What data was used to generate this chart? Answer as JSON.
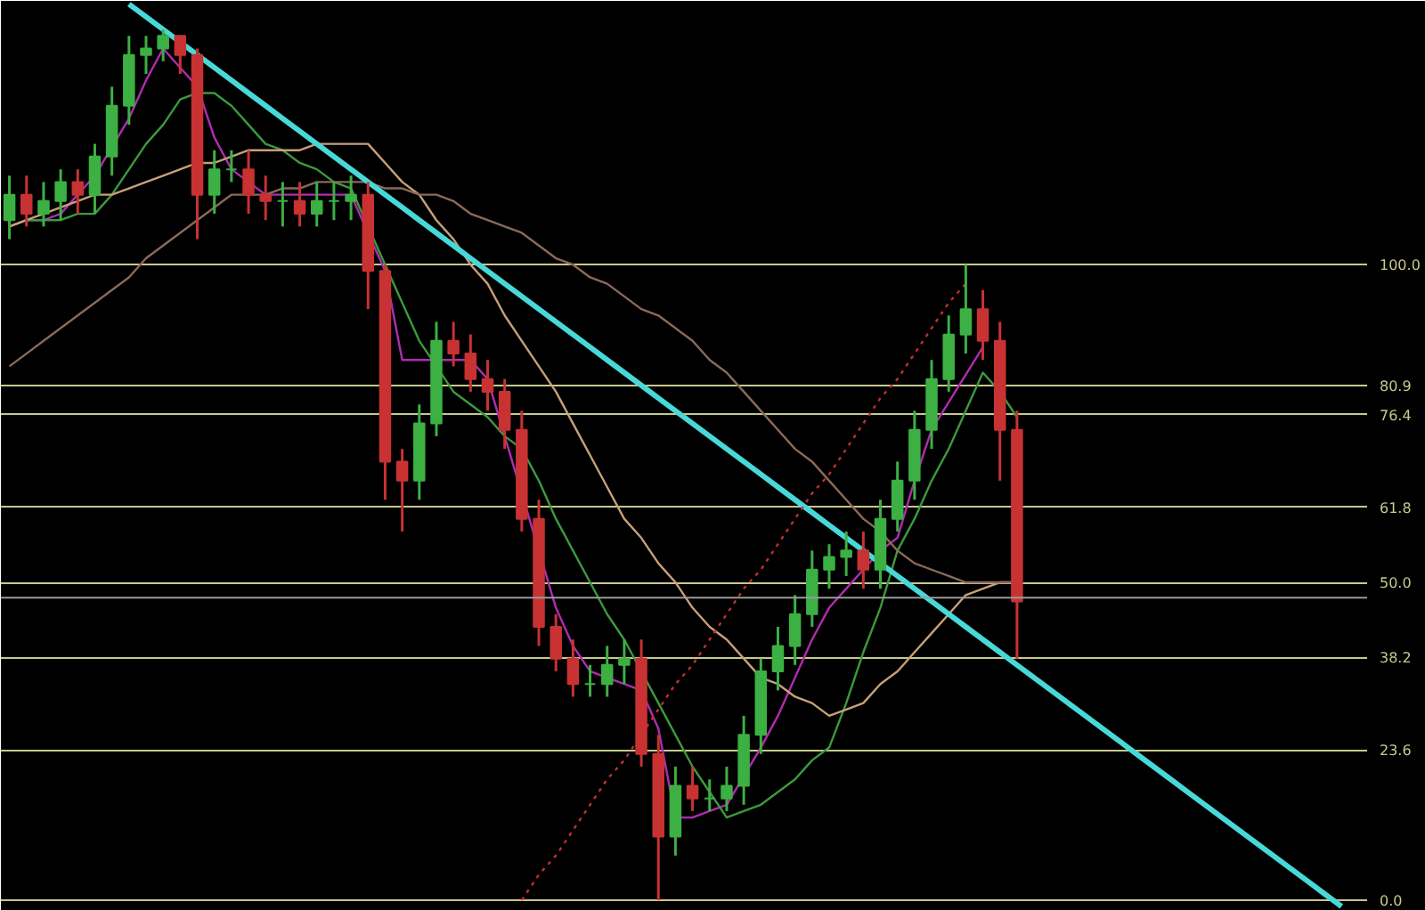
{
  "chart_data": {
    "type": "candlestick",
    "tick_labels": "y",
    "grid": "y",
    "categories": [
      null,
      null,
      null,
      null,
      null,
      null,
      null,
      null,
      null,
      null,
      null,
      null,
      null,
      null,
      null,
      null,
      null,
      null,
      null,
      null,
      null,
      null,
      null,
      null,
      null,
      null,
      null,
      null,
      null,
      null,
      null,
      null,
      null,
      null,
      null,
      null,
      null,
      null,
      null,
      null,
      null,
      null,
      null,
      null,
      null,
      null,
      null,
      null,
      null,
      null,
      null,
      null,
      null,
      null,
      null,
      null,
      null,
      null,
      null,
      null,
      null,
      null,
      null,
      null,
      null,
      null,
      null,
      null,
      null,
      null,
      null,
      null,
      null,
      null,
      null,
      null,
      null,
      null,
      null
    ],
    "ylim": [
      -1.7,
      141.5
    ],
    "yticks": [
      {
        "value": 0,
        "label": "0.0"
      },
      23.6,
      38.2,
      {
        "value": 50,
        "label": "50.0"
      },
      61.8,
      76.4,
      80.9,
      {
        "value": 100,
        "label": "100.0"
      }
    ],
    "ohlc": [
      [
        107,
        114,
        104,
        111
      ],
      [
        111,
        114,
        106,
        108
      ],
      [
        108,
        113,
        106,
        110
      ],
      [
        110,
        115,
        107,
        113
      ],
      [
        113,
        115,
        108,
        111
      ],
      [
        111,
        119,
        108,
        117
      ],
      [
        117,
        128,
        114,
        125
      ],
      [
        125,
        136,
        122,
        133
      ],
      [
        133,
        136,
        130,
        134
      ],
      [
        134,
        137,
        132,
        136
      ],
      [
        136,
        136,
        130,
        133
      ],
      [
        133,
        134,
        104,
        111
      ],
      [
        111,
        118,
        108,
        115
      ],
      [
        115,
        118,
        113,
        115
      ],
      [
        115,
        118,
        108,
        111
      ],
      [
        111,
        114,
        107,
        110
      ],
      [
        110,
        113,
        106,
        110
      ],
      [
        110,
        113,
        106,
        108
      ],
      [
        108,
        113,
        106,
        110
      ],
      [
        110,
        113,
        107,
        110
      ],
      [
        110,
        114,
        107,
        111
      ],
      [
        111,
        113,
        93,
        99
      ],
      [
        99,
        100,
        63,
        69
      ],
      [
        69,
        71,
        58,
        66
      ],
      [
        66,
        78,
        63,
        75
      ],
      [
        75,
        91,
        73,
        88
      ],
      [
        88,
        91,
        84,
        86
      ],
      [
        86,
        89,
        80,
        82
      ],
      [
        82,
        85,
        77,
        80
      ],
      [
        80,
        82,
        71,
        74
      ],
      [
        74,
        77,
        58,
        60
      ],
      [
        60,
        63,
        40,
        43
      ],
      [
        43,
        45,
        36,
        38
      ],
      [
        38,
        41,
        32,
        34
      ],
      [
        34,
        37,
        32,
        34
      ],
      [
        34,
        40,
        32,
        37
      ],
      [
        37,
        41,
        34,
        38
      ],
      [
        38,
        41,
        21,
        23
      ],
      [
        23,
        26,
        0,
        10
      ],
      [
        10,
        21,
        7,
        18
      ],
      [
        18,
        21,
        14,
        16
      ],
      [
        16,
        19,
        14,
        16
      ],
      [
        16,
        21,
        14,
        18
      ],
      [
        18,
        29,
        15,
        26
      ],
      [
        26,
        38,
        23,
        36
      ],
      [
        36,
        43,
        33,
        40
      ],
      [
        40,
        48,
        37,
        45
      ],
      [
        45,
        55,
        43,
        52
      ],
      [
        52,
        56,
        49,
        54
      ],
      [
        54,
        58,
        51,
        55
      ],
      [
        55,
        58,
        49,
        52
      ],
      [
        52,
        63,
        49,
        60
      ],
      [
        60,
        69,
        58,
        66
      ],
      [
        66,
        77,
        63,
        74
      ],
      [
        74,
        85,
        71,
        82
      ],
      [
        82,
        92,
        80,
        89
      ],
      [
        89,
        100,
        86,
        93
      ],
      [
        93,
        96,
        85,
        88
      ],
      [
        88,
        91,
        66,
        74
      ],
      [
        74,
        77,
        38,
        47
      ],
      null,
      null,
      null,
      null,
      null,
      null,
      null,
      null,
      null,
      null,
      null,
      null,
      null,
      null,
      null,
      null,
      null,
      null,
      null
    ],
    "colors": [
      "#3cb043",
      "#c83232",
      "#3cb043",
      "#3cb043",
      "#c83232",
      "#3cb043",
      "#3cb043",
      "#3cb043",
      "#3cb043",
      "#3cb043",
      "#c83232",
      "#c83232",
      "#3cb043",
      "#3cb043",
      "#c83232",
      "#c83232",
      "#3cb043",
      "#c83232",
      "#3cb043",
      "#3cb043",
      "#3cb043",
      "#c83232",
      "#c83232",
      "#c83232",
      "#3cb043",
      "#3cb043",
      "#c83232",
      "#c83232",
      "#c83232",
      "#c83232",
      "#c83232",
      "#c83232",
      "#c83232",
      "#c83232",
      "#3cb043",
      "#3cb043",
      "#3cb043",
      "#c83232",
      "#c83232",
      "#3cb043",
      "#c83232",
      "#3cb043",
      "#3cb043",
      "#3cb043",
      "#3cb043",
      "#3cb043",
      "#3cb043",
      "#3cb043",
      "#3cb043",
      "#3cb043",
      "#c83232",
      "#3cb043",
      "#3cb043",
      "#3cb043",
      "#3cb043",
      "#3cb043",
      "#3cb043",
      "#c83232",
      "#c83232",
      "#c83232",
      null,
      null,
      null,
      null,
      null,
      null,
      null,
      null,
      null,
      null,
      null,
      null,
      null,
      null,
      null,
      null,
      null,
      null,
      null
    ],
    "series": [
      {
        "type": "line",
        "color": "#b02cb0",
        "values": [
          106,
          107,
          107,
          108,
          111,
          114,
          null,
          123,
          129,
          134,
          131,
          128,
          120,
          115,
          113,
          111,
          111,
          111,
          111,
          111,
          111,
          null,
          99,
          85,
          null,
          null,
          85,
          85,
          82,
          null,
          null,
          null,
          46,
          40,
          36,
          35,
          34,
          33,
          27,
          13,
          13,
          14,
          15,
          null,
          24,
          29,
          35,
          41,
          46,
          49,
          52,
          55,
          57,
          66,
          74,
          null,
          null,
          87,
          null,
          null,
          null,
          null,
          null,
          null,
          null,
          null,
          null,
          null,
          null,
          null,
          null,
          null,
          null,
          null,
          null,
          null,
          null,
          null,
          null
        ]
      },
      {
        "type": "line",
        "color": "#3c9a3c",
        "values": [
          106,
          107,
          107,
          107,
          108,
          108,
          111,
          115,
          119,
          122,
          126,
          127,
          127,
          125,
          122,
          119,
          118,
          116,
          115,
          113,
          112,
          null,
          100,
          94,
          88,
          84,
          80,
          78,
          76,
          73,
          71,
          66,
          60,
          55,
          50,
          45,
          41,
          null,
          31,
          26,
          21,
          17,
          13,
          14,
          15,
          17,
          19,
          22,
          24,
          31,
          39,
          46,
          55,
          60,
          66,
          71,
          77,
          83,
          80,
          76,
          null,
          null,
          null,
          null,
          null,
          null,
          null,
          null,
          null,
          null,
          null,
          null,
          null,
          null,
          null,
          null,
          null,
          null,
          null
        ]
      },
      {
        "type": "line",
        "color": "#c8a078",
        "values": [
          106,
          107,
          108,
          109,
          110,
          111,
          111,
          112,
          113,
          114,
          115,
          116,
          116,
          117,
          118,
          118,
          118,
          118,
          119,
          119,
          119,
          119,
          116,
          113,
          111,
          107,
          104,
          100,
          97,
          92,
          88,
          84,
          80,
          75,
          70,
          65,
          60,
          57,
          53,
          50,
          46,
          43,
          41,
          38,
          35,
          34,
          32,
          31,
          29,
          30,
          31,
          34,
          36,
          39,
          42,
          45,
          48,
          49,
          50,
          50,
          null,
          null,
          null,
          null,
          null,
          null,
          null,
          null,
          null,
          null,
          null,
          null,
          null,
          null,
          null,
          null,
          null,
          null,
          null
        ]
      },
      {
        "type": "line",
        "color": "#8a6a5a",
        "values": [
          84,
          86,
          88,
          90,
          92,
          94,
          96,
          98,
          101,
          103,
          105,
          107,
          109,
          111,
          111,
          111,
          112,
          112,
          113,
          113,
          113,
          113,
          112,
          112,
          111,
          111,
          110,
          108,
          107,
          106,
          105,
          103,
          101,
          100,
          98,
          97,
          95,
          93,
          92,
          90,
          88,
          85,
          83,
          80,
          77,
          74,
          71,
          69,
          66,
          63,
          60,
          58,
          55,
          53,
          52,
          51,
          50,
          50,
          50,
          50,
          null,
          null,
          null,
          null,
          null,
          null,
          null,
          null,
          null,
          null,
          null,
          null,
          null,
          null,
          null,
          null,
          null,
          null,
          null
        ]
      },
      {
        "type": "line",
        "color": "#48d8d8",
        "values": [
          null,
          null,
          null,
          null,
          null,
          null,
          null,
          141,
          139,
          137,
          135,
          133,
          131,
          129,
          127,
          125,
          123,
          121,
          119,
          117,
          115,
          113,
          111,
          109,
          107,
          105,
          103,
          101,
          99,
          97,
          95,
          93,
          91,
          89,
          87,
          85,
          83,
          81,
          79,
          77,
          75,
          73,
          71,
          69,
          67,
          65,
          63,
          61,
          59,
          57,
          55,
          53,
          51,
          49,
          47,
          45,
          43,
          41,
          39,
          37,
          35,
          33,
          31,
          29,
          27,
          25,
          23,
          21,
          19,
          17,
          15,
          13,
          11,
          9,
          7,
          5,
          3,
          1,
          -1
        ]
      },
      {
        "type": "line",
        "color": "#c03030",
        "line_style": "dotted",
        "values": [
          null,
          null,
          null,
          null,
          null,
          null,
          null,
          null,
          null,
          null,
          null,
          null,
          null,
          null,
          null,
          null,
          null,
          null,
          null,
          null,
          null,
          null,
          null,
          null,
          null,
          null,
          null,
          null,
          null,
          null,
          0,
          4,
          7,
          11,
          15,
          19,
          22,
          26,
          30,
          34,
          37,
          41,
          45,
          49,
          52,
          56,
          60,
          64,
          67,
          71,
          75,
          79,
          82,
          86,
          90,
          94,
          97,
          null,
          null,
          null,
          null,
          null,
          null,
          null,
          null,
          null,
          null,
          null,
          null,
          null,
          null,
          null,
          null,
          null,
          null,
          null,
          null,
          null,
          null
        ]
      }
    ],
    "ref_lines": [
      {
        "axis": "y",
        "value": 47.6,
        "color": "#9a9a9a"
      }
    ]
  }
}
